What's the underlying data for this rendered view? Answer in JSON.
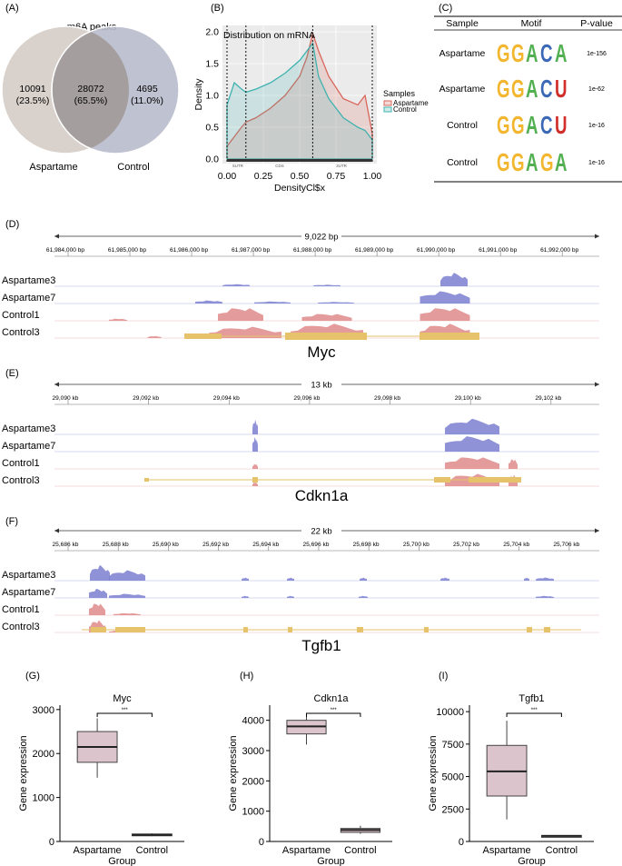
{
  "panels": {
    "a": "(A)",
    "b": "(B)",
    "c": "(C)",
    "d": "(D)",
    "e": "(E)",
    "f": "(F)",
    "g": "(G)",
    "h": "(H)",
    "i": "(I)"
  },
  "venn": {
    "title": "m6A peaks",
    "left_count": "10091",
    "left_pct": "(23.5%)",
    "mid_count": "28072",
    "mid_pct": "(65.5%)",
    "right_count": "4695",
    "right_pct": "(11.0%)",
    "left_label": "Aspartame",
    "right_label": "Control",
    "left_color": "#d9d2cc",
    "right_color": "#b9bccb"
  },
  "density": {
    "title": "Distribution on mRNA",
    "ylabel": "Density",
    "xlabel": "DensityCl$x",
    "xticks": [
      "0.00",
      "0.25",
      "0.50",
      "0.75",
      "1.00"
    ],
    "yticks": [
      "0.0",
      "0.5",
      "1.0",
      "1.5",
      "2.0"
    ],
    "regions": [
      "5UTR",
      "CDS",
      "3UTR"
    ],
    "legend_title": "Samples",
    "legend": [
      "Aspartame",
      "Control"
    ],
    "colors": {
      "aspartame": "#d9665a",
      "control": "#3fb3b0"
    }
  },
  "motifs": {
    "headers": [
      "Sample",
      "Motif",
      "P-value"
    ],
    "rows": [
      {
        "sample": "Aspartame",
        "pvalue": "1e-156",
        "letters": [
          "G",
          "G",
          "A",
          "C",
          "A"
        ]
      },
      {
        "sample": "Aspartame",
        "pvalue": "1e-62",
        "letters": [
          "G",
          "G",
          "A",
          "C",
          "U"
        ]
      },
      {
        "sample": "Control",
        "pvalue": "1e-16",
        "letters": [
          "G",
          "G",
          "A",
          "C",
          "U"
        ]
      },
      {
        "sample": "Control",
        "pvalue": "1e-16",
        "letters": [
          "G",
          "G",
          "A",
          "G",
          "A"
        ]
      }
    ]
  },
  "tracks": {
    "myc": {
      "span": "9,022 bp",
      "ticks": [
        "61,984,000 bp",
        "61,985,000 bp",
        "61,986,000 bp",
        "61,987,000 bp",
        "61,988,000 bp",
        "61,989,000 bp",
        "61,990,000 bp",
        "61,991,000 bp",
        "61,992,000 bp"
      ],
      "samples": [
        "Aspartame3",
        "Aspartame7",
        "Control1",
        "Control3"
      ],
      "gene": "Myc"
    },
    "cdkn1a": {
      "span": "13 kb",
      "ticks": [
        "29,090 kb",
        "29,092 kb",
        "29,094 kb",
        "29,096 kb",
        "29,098 kb",
        "29,100 kb",
        "29,102 kb"
      ],
      "samples": [
        "Aspartame3",
        "Aspartame7",
        "Control1",
        "Control3"
      ],
      "gene": "Cdkn1a"
    },
    "tgfb1": {
      "span": "22 kb",
      "ticks": [
        "25,686 kb",
        "25,688 kb",
        "25,690 kb",
        "25,692 kb",
        "25,694 kb",
        "25,696 kb",
        "25,698 kb",
        "25,700 kb",
        "25,702 kb",
        "25,704 kb",
        "25,706 kb"
      ],
      "samples": [
        "Aspartame3",
        "Aspartame7",
        "Control1",
        "Control3"
      ],
      "gene": "Tgfb1"
    },
    "colors": {
      "aspartame": "#7b7fd0",
      "control": "#df8a8a",
      "gene": "#e6c26b"
    }
  },
  "boxplots": [
    {
      "title": "Myc",
      "ylabel": "Gene expression",
      "xlabel": "Group",
      "sig": "***",
      "groups": [
        "Aspartame",
        "Control"
      ],
      "yticks": [
        "0",
        "1000",
        "2000",
        "3000"
      ]
    },
    {
      "title": "Cdkn1a",
      "ylabel": "Gene expression",
      "xlabel": "Group",
      "sig": "***",
      "groups": [
        "Aspartame",
        "Control"
      ],
      "yticks": [
        "0",
        "1000",
        "2000",
        "3000",
        "4000"
      ]
    },
    {
      "title": "Tgfb1",
      "ylabel": "Gene expression",
      "xlabel": "Group",
      "sig": "***",
      "groups": [
        "Aspartame",
        "Control"
      ],
      "yticks": [
        "0",
        "2500",
        "5000",
        "7500",
        "10000"
      ]
    }
  ],
  "chart_data": [
    {
      "type": "line",
      "title": "Distribution on mRNA",
      "xlabel": "DensityCl$x",
      "ylabel": "Density",
      "xlim": [
        0,
        1
      ],
      "ylim": [
        0,
        2.1
      ],
      "x": [
        0,
        0.05,
        0.1,
        0.13,
        0.2,
        0.3,
        0.4,
        0.5,
        0.55,
        0.59,
        0.63,
        0.7,
        0.8,
        0.9,
        0.95,
        1.0
      ],
      "series": [
        {
          "name": "Aspartame",
          "values": [
            0.2,
            0.35,
            0.5,
            0.58,
            0.65,
            0.8,
            1.0,
            1.3,
            1.6,
            1.97,
            1.7,
            1.3,
            0.95,
            0.85,
            1.0,
            0.4
          ]
        },
        {
          "name": "Control",
          "values": [
            0.85,
            1.2,
            1.1,
            1.05,
            1.1,
            1.2,
            1.35,
            1.55,
            1.7,
            1.82,
            1.3,
            0.95,
            0.65,
            0.5,
            0.45,
            0.3
          ]
        }
      ]
    },
    {
      "type": "box",
      "title": "Myc",
      "categories": [
        "Aspartame",
        "Control"
      ],
      "ylim": [
        0,
        3100
      ],
      "boxes": [
        {
          "min": 1450,
          "q1": 1800,
          "median": 2150,
          "q3": 2500,
          "max": 2800
        },
        {
          "min": 120,
          "q1": 130,
          "median": 150,
          "q3": 170,
          "max": 185
        }
      ]
    },
    {
      "type": "box",
      "title": "Cdkn1a",
      "categories": [
        "Aspartame",
        "Control"
      ],
      "ylim": [
        0,
        4500
      ],
      "boxes": [
        {
          "min": 3200,
          "q1": 3550,
          "median": 3800,
          "q3": 4000,
          "max": 4150
        },
        {
          "min": 250,
          "q1": 300,
          "median": 380,
          "q3": 430,
          "max": 520
        }
      ]
    },
    {
      "type": "box",
      "title": "Tgfb1",
      "categories": [
        "Aspartame",
        "Control"
      ],
      "ylim": [
        0,
        10500
      ],
      "boxes": [
        {
          "min": 1700,
          "q1": 3500,
          "median": 5400,
          "q3": 7400,
          "max": 9300
        },
        {
          "min": 380,
          "q1": 400,
          "median": 430,
          "q3": 460,
          "max": 490
        }
      ]
    }
  ]
}
